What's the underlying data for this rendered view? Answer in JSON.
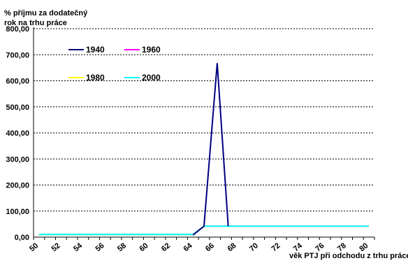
{
  "chart_data": {
    "type": "line",
    "ylabel": "% příjmu za dodatečný rok na trhu práce",
    "xlabel": "věk PTJ při odchodu z trhu práce",
    "ylim": [
      0,
      800
    ],
    "xlim": [
      50,
      81
    ],
    "y_ticks": [
      "0,00",
      "100,00",
      "200,00",
      "300,00",
      "400,00",
      "500,00",
      "600,00",
      "700,00",
      "800,00"
    ],
    "y_tick_values": [
      0,
      100,
      200,
      300,
      400,
      500,
      600,
      700,
      800
    ],
    "x_ticks": [
      "50",
      "52",
      "54",
      "56",
      "58",
      "60",
      "62",
      "64",
      "66",
      "68",
      "70",
      "72",
      "74",
      "76",
      "78",
      "80"
    ],
    "x_tick_values": [
      50,
      52,
      54,
      56,
      58,
      60,
      62,
      64,
      66,
      68,
      70,
      72,
      74,
      76,
      78,
      80
    ],
    "grid": "horizontal dashed",
    "legend_placement": "top-left",
    "series": [
      {
        "name": "1940",
        "color": "#000080",
        "x": [
          64.5,
          65.5,
          66.7,
          67.7
        ],
        "y": [
          8,
          42,
          668,
          42
        ]
      },
      {
        "name": "1960",
        "color": "#ff00ff",
        "x": [
          50.5,
          64.5,
          65.5,
          80.5
        ],
        "y": [
          10,
          10,
          42,
          42
        ]
      },
      {
        "name": "1980",
        "color": "#ffff00",
        "x": [
          50.5,
          64.5,
          65.5,
          80.5
        ],
        "y": [
          10,
          10,
          42,
          42
        ]
      },
      {
        "name": "2000",
        "color": "#00ffff",
        "x": [
          50.5,
          64.5,
          65.5,
          72,
          77,
          80.5
        ],
        "y": [
          10,
          10,
          42,
          42,
          42,
          42
        ]
      }
    ]
  }
}
